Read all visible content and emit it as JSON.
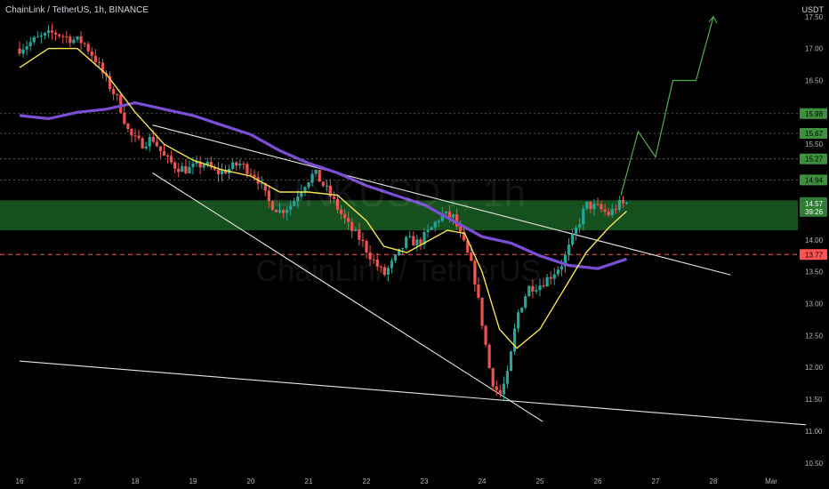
{
  "header": {
    "symbol_line": "ChainLink / TetherUS, 1h, BINANCE",
    "unit": "USDT"
  },
  "watermark": {
    "big": "LINKUSDT, 1h",
    "small": "ChainLink / TetherUS"
  },
  "colors": {
    "up": "#26a69a",
    "down": "#ef5350",
    "ema_short": "#f5e64a",
    "ema_long": "#7b4ed6",
    "zone": "#1f6b2a",
    "level_tag": "#3e8f3e",
    "current_tag": "#2e7d32",
    "resistance": "#ff5252",
    "projection": "#4caf50"
  },
  "chart_data": {
    "type": "candlestick",
    "ylim": [
      10.4,
      17.65
    ],
    "y_ticks": [
      "17.50",
      "17.00",
      "16.50",
      "15.50",
      "14.00",
      "13.50",
      "13.00",
      "12.50",
      "12.00",
      "11.50",
      "11.00",
      "10.50"
    ],
    "x_ticks": [
      {
        "label": "16",
        "t": 0
      },
      {
        "label": "17",
        "t": 1
      },
      {
        "label": "18",
        "t": 2
      },
      {
        "label": "19",
        "t": 3
      },
      {
        "label": "20",
        "t": 4
      },
      {
        "label": "21",
        "t": 5
      },
      {
        "label": "22",
        "t": 6
      },
      {
        "label": "23",
        "t": 7
      },
      {
        "label": "24",
        "t": 8
      },
      {
        "label": "25",
        "t": 9
      },
      {
        "label": "26",
        "t": 10
      },
      {
        "label": "27",
        "t": 11
      },
      {
        "label": "28",
        "t": 12
      },
      {
        "label": "Mar",
        "t": 13
      }
    ],
    "levels": [
      {
        "label": "15.98",
        "price": 15.98,
        "style": "dash"
      },
      {
        "label": "15.67",
        "price": 15.67,
        "style": "dash"
      },
      {
        "label": "15.27",
        "price": 15.27,
        "style": "dash"
      },
      {
        "label": "14.94",
        "price": 14.94,
        "style": "dash"
      }
    ],
    "resistance": {
      "label": "13.77",
      "price": 13.77
    },
    "current": {
      "price_label": "14.57",
      "countdown": "39:26",
      "price": 14.57
    },
    "zone": {
      "from": 14.15,
      "to": 14.62
    },
    "control_points": [
      [
        0,
        17.0
      ],
      [
        0.3,
        17.15
      ],
      [
        0.6,
        17.25
      ],
      [
        0.9,
        17.15
      ],
      [
        1.1,
        17.1
      ],
      [
        1.3,
        16.85
      ],
      [
        1.5,
        16.5
      ],
      [
        1.7,
        16.2
      ],
      [
        1.9,
        15.65
      ],
      [
        2.1,
        15.5
      ],
      [
        2.3,
        15.6
      ],
      [
        2.5,
        15.3
      ],
      [
        2.7,
        15.15
      ],
      [
        2.9,
        15.1
      ],
      [
        3.2,
        15.2
      ],
      [
        3.4,
        15.05
      ],
      [
        3.6,
        15.1
      ],
      [
        3.8,
        15.2
      ],
      [
        4.1,
        15.0
      ],
      [
        4.3,
        14.6
      ],
      [
        4.5,
        14.45
      ],
      [
        4.7,
        14.55
      ],
      [
        4.9,
        14.85
      ],
      [
        5.1,
        15.05
      ],
      [
        5.3,
        14.8
      ],
      [
        5.5,
        14.5
      ],
      [
        5.7,
        14.2
      ],
      [
        5.9,
        14.0
      ],
      [
        6.1,
        13.7
      ],
      [
        6.3,
        13.45
      ],
      [
        6.5,
        13.7
      ],
      [
        6.7,
        14.0
      ],
      [
        6.9,
        13.95
      ],
      [
        7.1,
        14.15
      ],
      [
        7.3,
        14.4
      ],
      [
        7.5,
        14.35
      ],
      [
        7.7,
        13.9
      ],
      [
        7.85,
        13.5
      ],
      [
        8.0,
        12.7
      ],
      [
        8.15,
        11.85
      ],
      [
        8.3,
        11.55
      ],
      [
        8.45,
        11.9
      ],
      [
        8.6,
        12.8
      ],
      [
        8.8,
        13.25
      ],
      [
        9.0,
        13.3
      ],
      [
        9.2,
        13.45
      ],
      [
        9.4,
        13.65
      ],
      [
        9.6,
        14.1
      ],
      [
        9.8,
        14.55
      ],
      [
        10.0,
        14.5
      ],
      [
        10.2,
        14.4
      ],
      [
        10.35,
        14.55
      ],
      [
        10.5,
        14.57
      ]
    ],
    "ema_short": [
      [
        0,
        16.7
      ],
      [
        0.5,
        17.0
      ],
      [
        1.0,
        17.0
      ],
      [
        1.5,
        16.6
      ],
      [
        2.0,
        16.0
      ],
      [
        2.5,
        15.5
      ],
      [
        3.0,
        15.25
      ],
      [
        3.5,
        15.1
      ],
      [
        4.0,
        15.0
      ],
      [
        4.5,
        14.75
      ],
      [
        5.0,
        14.75
      ],
      [
        5.5,
        14.7
      ],
      [
        6.0,
        14.3
      ],
      [
        6.3,
        13.9
      ],
      [
        6.7,
        13.8
      ],
      [
        7.0,
        13.95
      ],
      [
        7.4,
        14.15
      ],
      [
        7.7,
        14.1
      ],
      [
        8.0,
        13.5
      ],
      [
        8.3,
        12.6
      ],
      [
        8.6,
        12.3
      ],
      [
        9.0,
        12.6
      ],
      [
        9.4,
        13.2
      ],
      [
        9.8,
        13.8
      ],
      [
        10.2,
        14.2
      ],
      [
        10.5,
        14.45
      ]
    ],
    "ema_long": [
      [
        0,
        15.95
      ],
      [
        0.5,
        15.9
      ],
      [
        1.0,
        16.0
      ],
      [
        1.5,
        16.05
      ],
      [
        2.0,
        16.15
      ],
      [
        2.5,
        16.05
      ],
      [
        3.0,
        15.95
      ],
      [
        3.5,
        15.8
      ],
      [
        4.0,
        15.65
      ],
      [
        4.5,
        15.4
      ],
      [
        5.0,
        15.2
      ],
      [
        5.5,
        15.05
      ],
      [
        6.0,
        14.85
      ],
      [
        6.5,
        14.7
      ],
      [
        7.0,
        14.55
      ],
      [
        7.5,
        14.3
      ],
      [
        8.0,
        14.05
      ],
      [
        8.5,
        13.95
      ],
      [
        9.0,
        13.75
      ],
      [
        9.5,
        13.6
      ],
      [
        10.0,
        13.55
      ],
      [
        10.5,
        13.7
      ]
    ],
    "trendlines": [
      {
        "from": [
          2.3,
          15.8
        ],
        "to": [
          12.3,
          13.45
        ]
      },
      {
        "from": [
          2.3,
          15.05
        ],
        "to": [
          9.05,
          11.15
        ]
      },
      {
        "from": [
          0,
          12.1
        ],
        "to": [
          13.6,
          11.1
        ]
      }
    ],
    "projection": [
      [
        10.4,
        14.7
      ],
      [
        10.7,
        15.7
      ],
      [
        11.0,
        15.3
      ],
      [
        11.3,
        16.5
      ],
      [
        11.7,
        16.5
      ],
      [
        12.0,
        17.5
      ]
    ]
  }
}
